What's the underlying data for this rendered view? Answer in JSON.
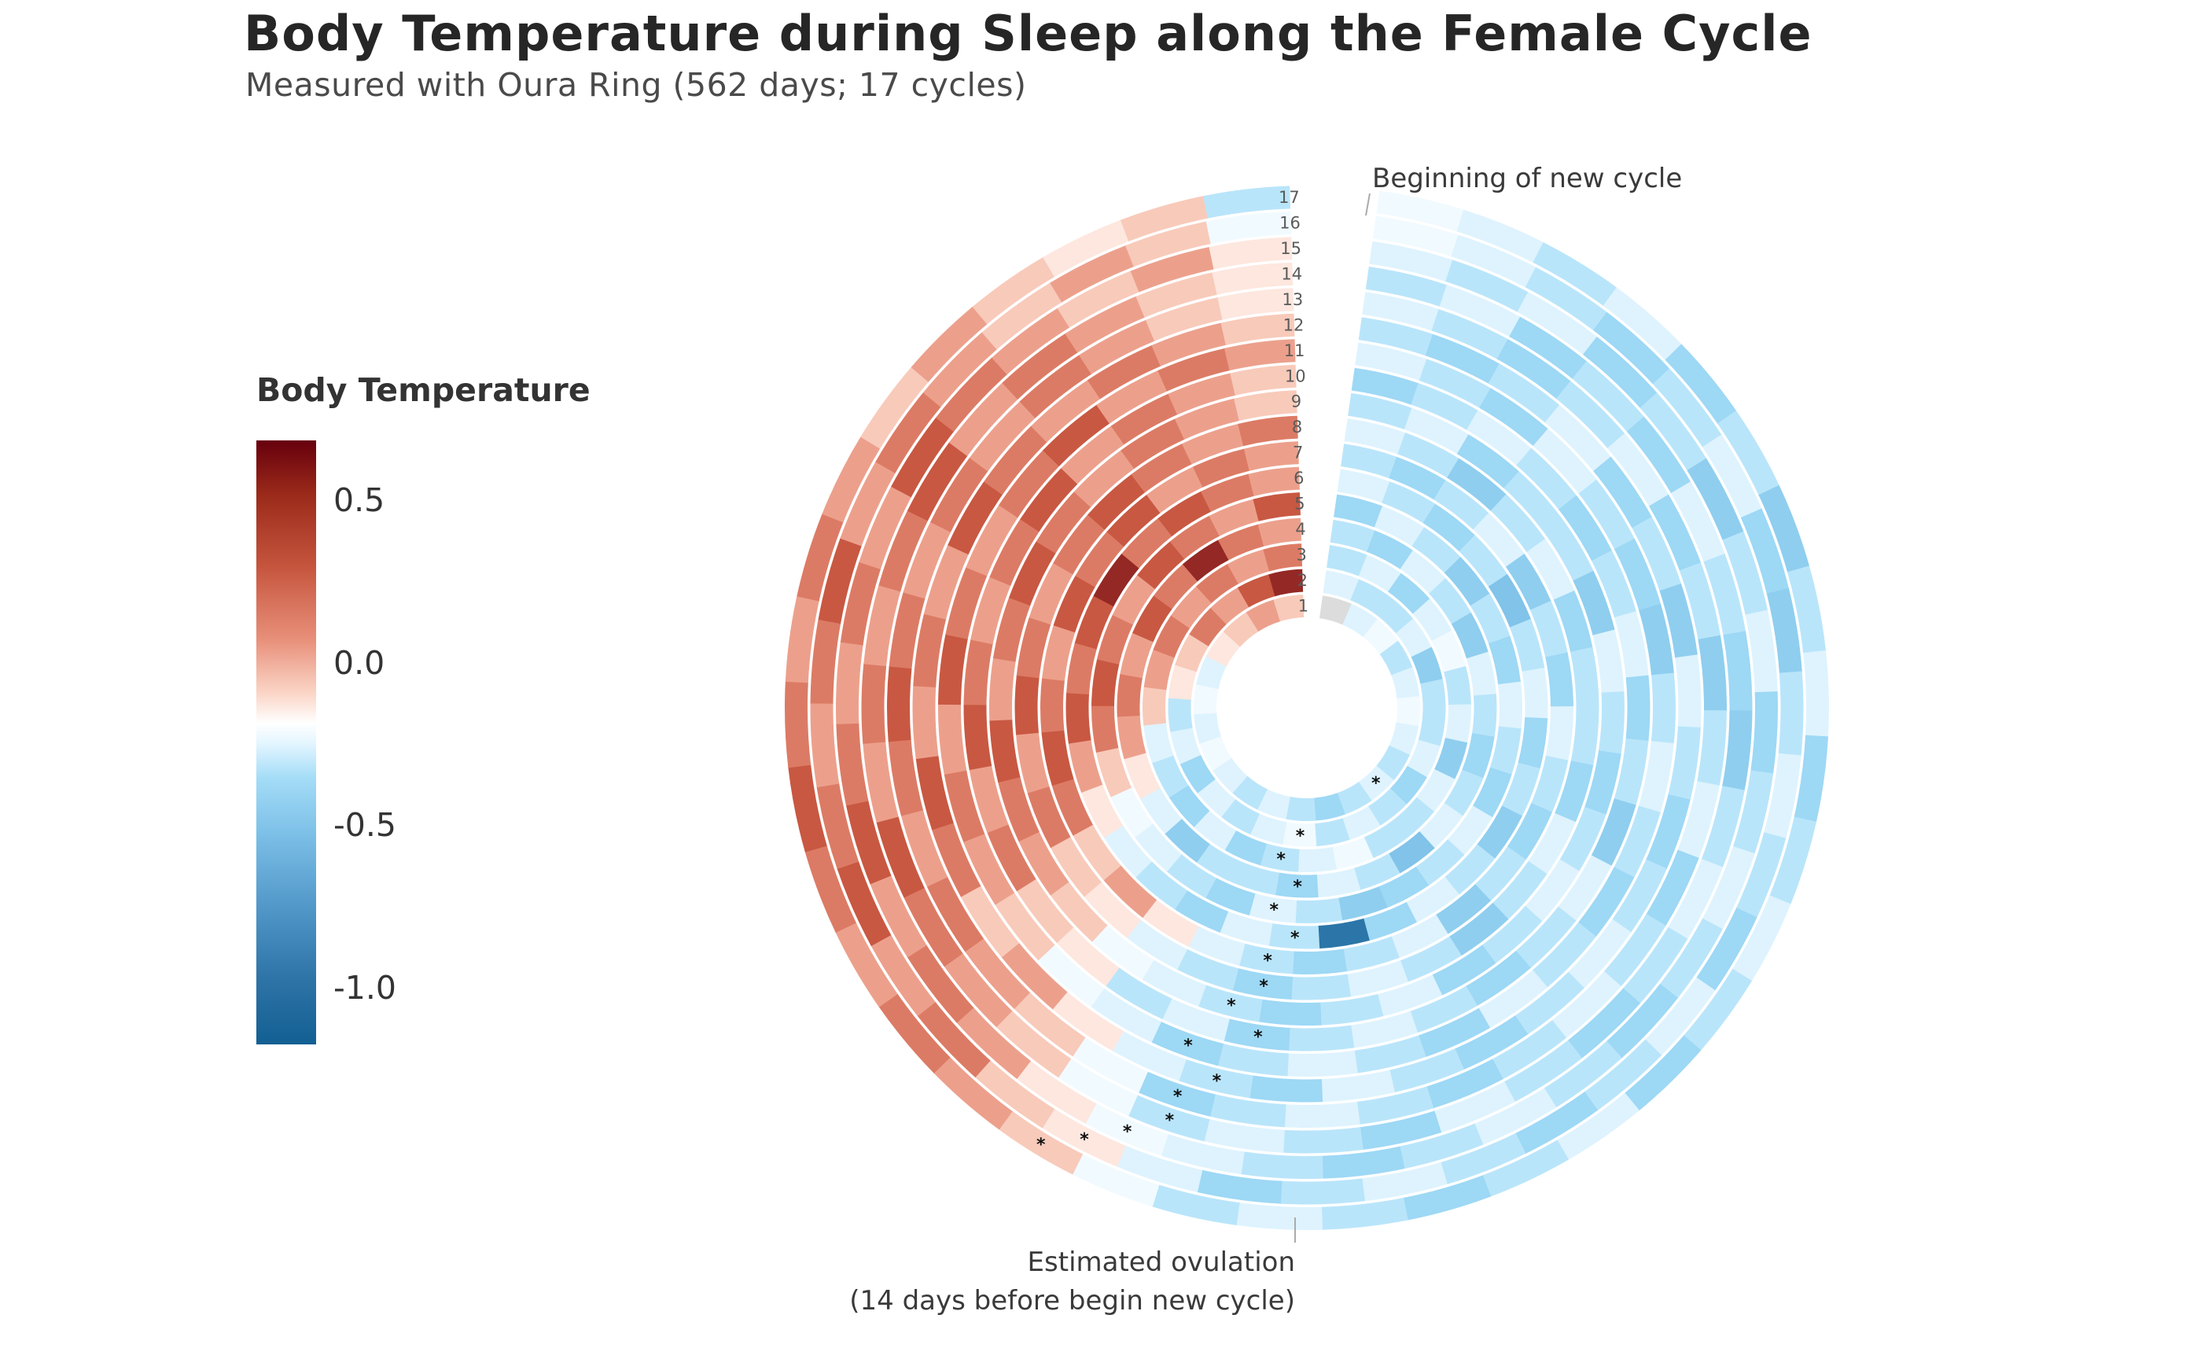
{
  "header": {
    "title": "Body Temperature during Sleep along the Female Cycle",
    "subtitle": "Measured with Oura Ring (562 days; 17 cycles)"
  },
  "legend": {
    "title": "Body Temperature",
    "ticks": [
      "0.5",
      "0.0",
      "-0.5",
      "-1.0"
    ],
    "range": [
      -1.2,
      0.68
    ]
  },
  "annotations": {
    "cycle_start": "Beginning of new cycle",
    "ovulation_line1": "Estimated ovulation",
    "ovulation_line2": "(14 days before begin  new cycle)"
  },
  "chart_data": {
    "type": "radial-heatmap",
    "title": "Body Temperature during Sleep along the Female Cycle",
    "subtitle": "Measured with Oura Ring (562 days; 17 cycles)",
    "value_label": "Body Temperature",
    "color_scale": {
      "min": -1.2,
      "max": 0.68,
      "zero_color": "#ffffff",
      "warm": "#67000d",
      "cool": "#125f93"
    },
    "cycles": [
      {
        "cycle": "1",
        "values": [
          null,
          -0.2,
          -0.1,
          -0.3,
          -0.2,
          -0.1,
          -0.2,
          -0.3,
          -0.2,
          -0.3,
          -0.4,
          -0.3,
          -0.2,
          -0.3,
          -0.2,
          -0.1,
          -0.2,
          -0.1,
          -0.2,
          0.1,
          0.2,
          0.3,
          0.2
        ],
        "ovulation_day": 9
      },
      {
        "cycle": "2",
        "values": [
          -0.2,
          -0.3,
          -0.3,
          -0.2,
          -0.5,
          -0.3,
          -0.3,
          -0.2,
          -0.4,
          -0.3,
          -0.2,
          -0.3,
          -0.1,
          -0.2,
          -0.3,
          -0.2,
          -0.4,
          -0.2,
          -0.3,
          0.1,
          0.2,
          0.4,
          0.3,
          0.5,
          0.6
        ],
        "ovulation_day": 13
      },
      {
        "cycle": "3",
        "values": [
          -0.3,
          -0.2,
          -0.4,
          -0.2,
          -0.1,
          -0.3,
          -0.2,
          -0.5,
          -0.2,
          -0.3,
          -0.3,
          -0.1,
          -0.2,
          -0.3,
          -0.4,
          -0.2,
          -0.4,
          -0.3,
          -0.2,
          0.2,
          0.3,
          0.4,
          0.3,
          0.4,
          0.3,
          0.4
        ],
        "ovulation_day": 14
      },
      {
        "cycle": "4",
        "values": [
          -0.3,
          -0.4,
          -0.2,
          -0.3,
          -0.5,
          -0.2,
          -0.3,
          -0.4,
          -0.3,
          -0.2,
          -0.6,
          -0.3,
          -0.2,
          -0.4,
          -0.3,
          -0.3,
          -0.5,
          -0.2,
          0.1,
          0.3,
          0.4,
          0.3,
          0.5,
          0.4,
          0.6,
          0.4,
          0.3
        ],
        "ovulation_day": 14
      },
      {
        "cycle": "5",
        "values": [
          -0.4,
          -0.2,
          -0.3,
          -0.5,
          -0.3,
          -0.4,
          -0.2,
          -0.3,
          -0.4,
          -0.2,
          -0.3,
          -0.4,
          -0.5,
          -0.3,
          -0.2,
          -0.4,
          -0.3,
          -0.2,
          -0.1,
          0.2,
          0.4,
          0.5,
          0.4,
          0.3,
          0.5,
          0.4,
          0.3,
          0.5
        ],
        "ovulation_day": 15
      },
      {
        "cycle": "6",
        "values": [
          -0.2,
          -0.3,
          -0.4,
          -0.3,
          -0.6,
          -0.3,
          -0.2,
          -0.4,
          -0.3,
          -0.5,
          -0.3,
          -0.2,
          -0.4,
          -1.1,
          -0.3,
          -0.2,
          -0.4,
          -0.3,
          -0.2,
          0.1,
          0.3,
          0.5,
          0.4,
          0.5,
          0.6,
          0.4,
          0.5,
          0.4,
          0.3
        ],
        "ovulation_day": 15
      },
      {
        "cycle": "7",
        "values": [
          -0.3,
          -0.4,
          -0.3,
          -0.2,
          -0.5,
          -0.3,
          -0.4,
          -0.2,
          -0.3,
          -0.4,
          -0.3,
          -0.5,
          -0.2,
          -0.3,
          -0.4,
          -0.3,
          -0.2,
          0.1,
          0.3,
          0.2,
          0.4,
          0.5,
          0.4,
          0.3,
          0.5,
          0.4,
          0.5,
          0.3,
          0.4,
          0.3
        ],
        "ovulation_day": 16
      },
      {
        "cycle": "8",
        "values": [
          -0.2,
          -0.3,
          -0.5,
          -0.3,
          -0.2,
          -0.4,
          -0.3,
          -0.3,
          -0.4,
          -0.2,
          -0.3,
          -0.5,
          -0.3,
          -0.2,
          -0.3,
          -0.4,
          -0.3,
          -0.2,
          0.1,
          0.2,
          0.4,
          0.3,
          0.5,
          0.4,
          0.3,
          0.4,
          0.5,
          0.4,
          0.3,
          0.4
        ],
        "ovulation_day": 16
      },
      {
        "cycle": "9",
        "values": [
          -0.3,
          -0.2,
          -0.4,
          -0.3,
          -0.3,
          -0.5,
          -0.2,
          -0.3,
          -0.4,
          -0.3,
          -0.2,
          -0.3,
          -0.4,
          -0.2,
          -0.3,
          -0.4,
          -0.3,
          -0.2,
          -0.1,
          0.2,
          0.3,
          0.4,
          0.5,
          0.3,
          0.4,
          0.5,
          0.4,
          0.3,
          0.4,
          0.3,
          0.2
        ],
        "ovulation_day": 17
      },
      {
        "cycle": "10",
        "values": [
          -0.4,
          -0.3,
          -0.2,
          -0.3,
          -0.4,
          -0.3,
          -0.2,
          -0.4,
          -0.3,
          -0.5,
          -0.2,
          -0.3,
          -0.4,
          -0.3,
          -0.2,
          -0.3,
          -0.4,
          -0.2,
          -0.3,
          0.1,
          0.2,
          0.4,
          0.3,
          0.5,
          0.4,
          0.3,
          0.4,
          0.5,
          0.3,
          0.4,
          0.3,
          0.2
        ],
        "ovulation_day": 17
      },
      {
        "cycle": "11",
        "values": [
          -0.2,
          -0.3,
          -0.4,
          -0.2,
          -0.3,
          -0.4,
          -0.5,
          -0.3,
          -0.2,
          -0.3,
          -0.4,
          -0.3,
          -0.2,
          -0.4,
          -0.3,
          -0.2,
          -0.3,
          -0.4,
          -0.2,
          -0.1,
          0.2,
          0.3,
          0.4,
          0.3,
          0.5,
          0.4,
          0.3,
          0.4,
          0.5,
          0.3,
          0.4,
          0.3
        ],
        "ovulation_day": 18
      },
      {
        "cycle": "12",
        "values": [
          -0.3,
          -0.4,
          -0.3,
          -0.2,
          -0.4,
          -0.3,
          -0.5,
          -0.2,
          -0.3,
          -0.4,
          -0.3,
          -0.2,
          -0.3,
          -0.4,
          -0.3,
          -0.2,
          -0.4,
          -0.3,
          -0.2,
          0.1,
          0.3,
          0.2,
          0.4,
          0.5,
          0.3,
          0.4,
          0.3,
          0.5,
          0.4,
          0.3,
          0.4,
          0.3,
          0.2
        ],
        "ovulation_day": 18
      },
      {
        "cycle": "13",
        "values": [
          -0.2,
          -0.3,
          -0.4,
          -0.3,
          -0.2,
          -0.4,
          -0.3,
          -0.5,
          -0.3,
          -0.2,
          -0.4,
          -0.3,
          -0.2,
          -0.3,
          -0.4,
          -0.3,
          -0.2,
          -0.3,
          -0.4,
          -0.1,
          0.2,
          0.3,
          0.4,
          0.3,
          0.4,
          0.5,
          0.4,
          0.3,
          0.4,
          0.3,
          0.4,
          0.3,
          0.2,
          0.1
        ],
        "ovulation_day": 19
      },
      {
        "cycle": "14",
        "values": [
          -0.3,
          -0.2,
          -0.4,
          -0.3,
          -0.4,
          -0.2,
          -0.3,
          -0.4,
          -0.5,
          -0.3,
          -0.2,
          -0.3,
          -0.4,
          -0.3,
          -0.2,
          -0.4,
          -0.3,
          -0.2,
          -0.3,
          -0.1,
          0.2,
          0.3,
          0.4,
          0.5,
          0.3,
          0.4,
          0.3,
          0.4,
          0.5,
          0.3,
          0.4,
          0.3,
          0.2,
          0.1
        ],
        "ovulation_day": 19
      },
      {
        "cycle": "15",
        "values": [
          -0.2,
          -0.3,
          -0.2,
          -0.4,
          -0.3,
          -0.5,
          -0.3,
          -0.2,
          -0.4,
          -0.3,
          -0.2,
          -0.3,
          -0.4,
          -0.3,
          -0.2,
          -0.3,
          -0.4,
          -0.3,
          -0.2,
          -0.1,
          0.1,
          0.3,
          0.4,
          0.3,
          0.5,
          0.4,
          0.3,
          0.4,
          0.3,
          0.5,
          0.4,
          0.3,
          0.2,
          0.3,
          0.1
        ],
        "ovulation_day": 20
      },
      {
        "cycle": "16",
        "values": [
          -0.1,
          -0.2,
          -0.3,
          -0.4,
          -0.3,
          -0.2,
          -0.4,
          -0.5,
          -0.3,
          -0.2,
          -0.3,
          -0.4,
          -0.2,
          -0.3,
          -0.4,
          -0.3,
          -0.2,
          -0.3,
          -0.4,
          -0.2,
          0.1,
          0.2,
          0.4,
          0.3,
          0.5,
          0.4,
          0.3,
          0.4,
          0.5,
          0.3,
          0.4,
          0.3,
          0.2,
          0.3,
          0.2,
          -0.1
        ],
        "ovulation_day": 21
      },
      {
        "cycle": "17",
        "values": [
          -0.1,
          -0.2,
          -0.3,
          -0.2,
          -0.4,
          -0.3,
          -0.5,
          -0.3,
          -0.2,
          -0.4,
          -0.3,
          -0.2,
          -0.3,
          -0.4,
          -0.2,
          -0.3,
          -0.4,
          -0.3,
          -0.2,
          -0.3,
          -0.1,
          0.2,
          0.3,
          0.4,
          0.3,
          0.4,
          0.5,
          0.4,
          0.3,
          0.4,
          0.3,
          0.2,
          0.3,
          0.2,
          0.1,
          0.2,
          -0.3
        ],
        "ovulation_day": 22
      }
    ]
  }
}
